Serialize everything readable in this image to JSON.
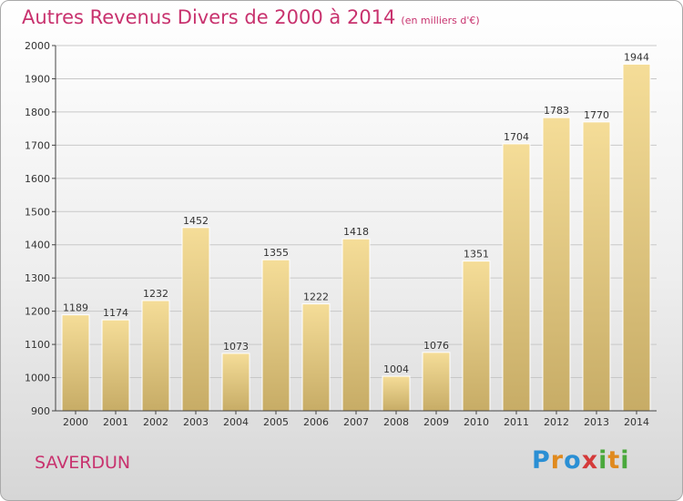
{
  "page": {
    "title": "Autres Revenus Divers de 2000 à 2014",
    "subtitle": "(en milliers d'€)",
    "town": "SAVERDUN",
    "logo": {
      "letters": [
        "P",
        "r",
        "o",
        "x",
        "i",
        "t",
        "i"
      ],
      "colors": [
        "#2a8fd4",
        "#e08a1e",
        "#2a8fd4",
        "#d43a3a",
        "#4aa83c",
        "#e08a1e",
        "#4aa83c"
      ]
    },
    "colors": {
      "title": "#c8326e",
      "bar_light": "#f5dd98",
      "bar_dark": "#c7ac66",
      "grid": "#c8c8c8",
      "axis": "#444444"
    }
  },
  "chart_data": {
    "type": "bar",
    "title": "Autres Revenus Divers de 2000 à 2014",
    "subtitle": "(en milliers d'€)",
    "categories": [
      "2000",
      "2001",
      "2002",
      "2003",
      "2004",
      "2005",
      "2006",
      "2007",
      "2008",
      "2009",
      "2010",
      "2011",
      "2012",
      "2013",
      "2014"
    ],
    "values": [
      1189,
      1174,
      1232,
      1452,
      1073,
      1355,
      1222,
      1418,
      1004,
      1076,
      1351,
      1704,
      1783,
      1770,
      1944
    ],
    "ylim": [
      900,
      2000
    ],
    "yticks": [
      900,
      1000,
      1100,
      1200,
      1300,
      1400,
      1500,
      1600,
      1700,
      1800,
      1900,
      2000
    ],
    "grid": true,
    "data_labels": true
  }
}
